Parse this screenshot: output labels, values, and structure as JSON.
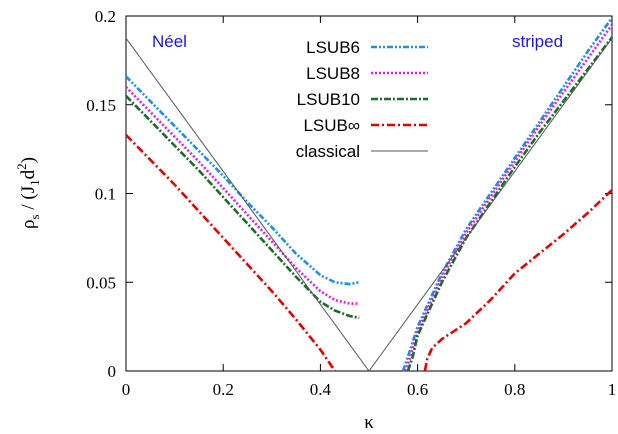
{
  "chart_data": {
    "type": "line",
    "xlabel": "κ",
    "ylabel": "ρs / (J1d2)",
    "xlim": [
      0,
      1
    ],
    "ylim": [
      0,
      0.2
    ],
    "xticks": [
      "0",
      "0.2",
      "0.4",
      "0.6",
      "0.8",
      "1"
    ],
    "yticks": [
      "0",
      "0.05",
      "0.1",
      "0.15",
      "0.2"
    ],
    "grid": false,
    "legend_position": "top-center",
    "annotations": [
      {
        "text": "Néel",
        "x": 0.09,
        "y": 0.184,
        "color": "#1a1ad6"
      },
      {
        "text": "striped",
        "x": 0.92,
        "y": 0.184,
        "color": "#1a1ad6"
      }
    ],
    "series": [
      {
        "name": "LSUB6",
        "color": "#1f8fe0",
        "dash": "6,2,2,2,2,2",
        "segments": [
          [
            [
              0,
              0.166
            ],
            [
              0.05,
              0.152
            ],
            [
              0.1,
              0.138
            ],
            [
              0.15,
              0.124
            ],
            [
              0.2,
              0.11
            ],
            [
              0.25,
              0.095
            ],
            [
              0.3,
              0.081
            ],
            [
              0.35,
              0.066
            ],
            [
              0.4,
              0.054
            ],
            [
              0.43,
              0.05
            ],
            [
              0.46,
              0.049
            ],
            [
              0.48,
              0.05
            ]
          ],
          [
            [
              0.57,
              0.0
            ],
            [
              0.58,
              0.008
            ],
            [
              0.6,
              0.025
            ],
            [
              0.65,
              0.055
            ],
            [
              0.7,
              0.08
            ],
            [
              0.75,
              0.1
            ],
            [
              0.8,
              0.12
            ],
            [
              0.85,
              0.14
            ],
            [
              0.9,
              0.16
            ],
            [
              0.95,
              0.18
            ],
            [
              1.0,
              0.199
            ]
          ]
        ]
      },
      {
        "name": "LSUB8",
        "color": "#e020e0",
        "dash": "2,2",
        "segments": [
          [
            [
              0,
              0.16
            ],
            [
              0.05,
              0.146
            ],
            [
              0.1,
              0.132
            ],
            [
              0.15,
              0.118
            ],
            [
              0.2,
              0.103
            ],
            [
              0.25,
              0.088
            ],
            [
              0.3,
              0.073
            ],
            [
              0.35,
              0.058
            ],
            [
              0.4,
              0.045
            ],
            [
              0.43,
              0.04
            ],
            [
              0.46,
              0.038
            ],
            [
              0.48,
              0.038
            ]
          ],
          [
            [
              0.575,
              0.0
            ],
            [
              0.585,
              0.008
            ],
            [
              0.6,
              0.022
            ],
            [
              0.65,
              0.053
            ],
            [
              0.7,
              0.078
            ],
            [
              0.75,
              0.098
            ],
            [
              0.8,
              0.118
            ],
            [
              0.85,
              0.138
            ],
            [
              0.9,
              0.157
            ],
            [
              0.95,
              0.176
            ],
            [
              1.0,
              0.195
            ]
          ]
        ]
      },
      {
        "name": "LSUB10",
        "color": "#1a6e2a",
        "dash": "7,2,2,2",
        "segments": [
          [
            [
              0,
              0.155
            ],
            [
              0.05,
              0.141
            ],
            [
              0.1,
              0.127
            ],
            [
              0.15,
              0.113
            ],
            [
              0.2,
              0.098
            ],
            [
              0.25,
              0.083
            ],
            [
              0.3,
              0.068
            ],
            [
              0.35,
              0.053
            ],
            [
              0.4,
              0.039
            ],
            [
              0.43,
              0.034
            ],
            [
              0.46,
              0.031
            ],
            [
              0.48,
              0.03
            ]
          ],
          [
            [
              0.58,
              0.0
            ],
            [
              0.59,
              0.008
            ],
            [
              0.6,
              0.02
            ],
            [
              0.65,
              0.05
            ],
            [
              0.7,
              0.075
            ],
            [
              0.75,
              0.095
            ],
            [
              0.8,
              0.115
            ],
            [
              0.85,
              0.134
            ],
            [
              0.9,
              0.152
            ],
            [
              0.95,
              0.17
            ],
            [
              1.0,
              0.188
            ]
          ]
        ]
      },
      {
        "name": "LSUB∞",
        "color": "#e00000",
        "dash": "8,3,2,3",
        "segments": [
          [
            [
              0,
              0.133
            ],
            [
              0.05,
              0.119
            ],
            [
              0.1,
              0.105
            ],
            [
              0.15,
              0.09
            ],
            [
              0.2,
              0.075
            ],
            [
              0.25,
              0.06
            ],
            [
              0.3,
              0.045
            ],
            [
              0.35,
              0.029
            ],
            [
              0.4,
              0.012
            ],
            [
              0.42,
              0.004
            ],
            [
              0.43,
              0.0
            ]
          ],
          [
            [
              0.615,
              0.0
            ],
            [
              0.62,
              0.007
            ],
            [
              0.63,
              0.013
            ],
            [
              0.65,
              0.018
            ],
            [
              0.7,
              0.027
            ],
            [
              0.75,
              0.04
            ],
            [
              0.8,
              0.055
            ],
            [
              0.85,
              0.066
            ],
            [
              0.9,
              0.077
            ],
            [
              0.95,
              0.089
            ],
            [
              1.0,
              0.102
            ]
          ]
        ]
      },
      {
        "name": "classical",
        "color": "#555555",
        "dash": "",
        "segments": [
          [
            [
              0,
              0.1875
            ],
            [
              0.5,
              0.0
            ],
            [
              1.0,
              0.1875
            ]
          ]
        ]
      }
    ]
  }
}
